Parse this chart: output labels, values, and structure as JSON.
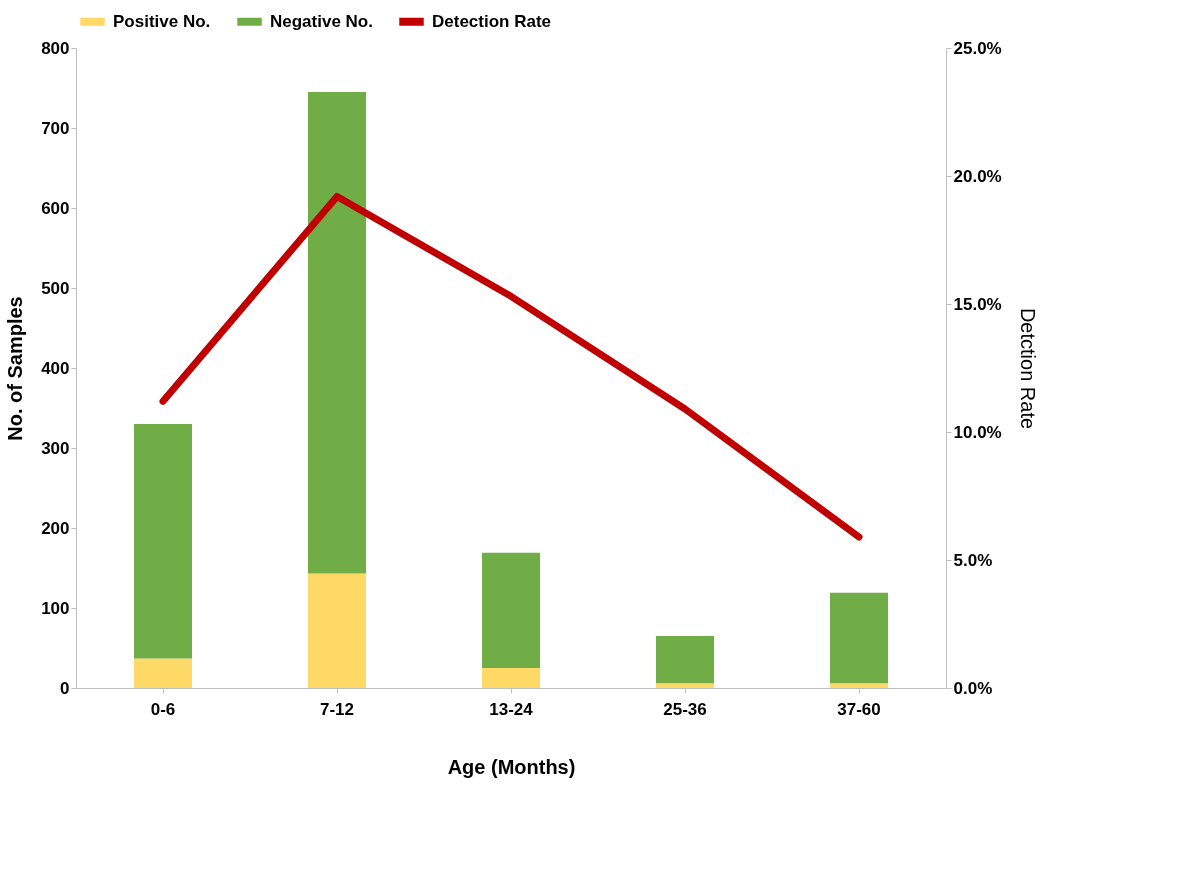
{
  "chart_data": {
    "type": "bar",
    "stacked": true,
    "categories": [
      "0-6",
      "7-12",
      "13-24",
      "25-36",
      "37-60"
    ],
    "xlabel": "Age (Months)",
    "ylabel": "No. of Samples",
    "y2label": "Detction Rate",
    "series": [
      {
        "name": "Positive No.",
        "color": "#ffd966",
        "values": [
          37,
          143,
          25,
          6,
          6
        ]
      },
      {
        "name": "Negative No.",
        "color": "#70ad47",
        "values": [
          293,
          602,
          144,
          59,
          113
        ]
      },
      {
        "name": "Detection Rate",
        "type": "line",
        "axis": "y2",
        "color": "#c00000",
        "values": [
          11.2,
          19.2,
          15.3,
          10.9,
          5.9
        ]
      }
    ],
    "ylim": [
      0,
      800
    ],
    "yticks": [
      0,
      100,
      200,
      300,
      400,
      500,
      600,
      700,
      800
    ],
    "y2lim": [
      0,
      25
    ],
    "y2ticks": [
      {
        "value": 0,
        "label": "0.0%"
      },
      {
        "value": 5,
        "label": "5.0%"
      },
      {
        "value": 10,
        "label": "10.0%"
      },
      {
        "value": 15,
        "label": "15.0%"
      },
      {
        "value": 20,
        "label": "20.0%"
      },
      {
        "value": 25,
        "label": "25.0%"
      }
    ],
    "grid": false,
    "legend": "top",
    "line_style": "solid"
  }
}
